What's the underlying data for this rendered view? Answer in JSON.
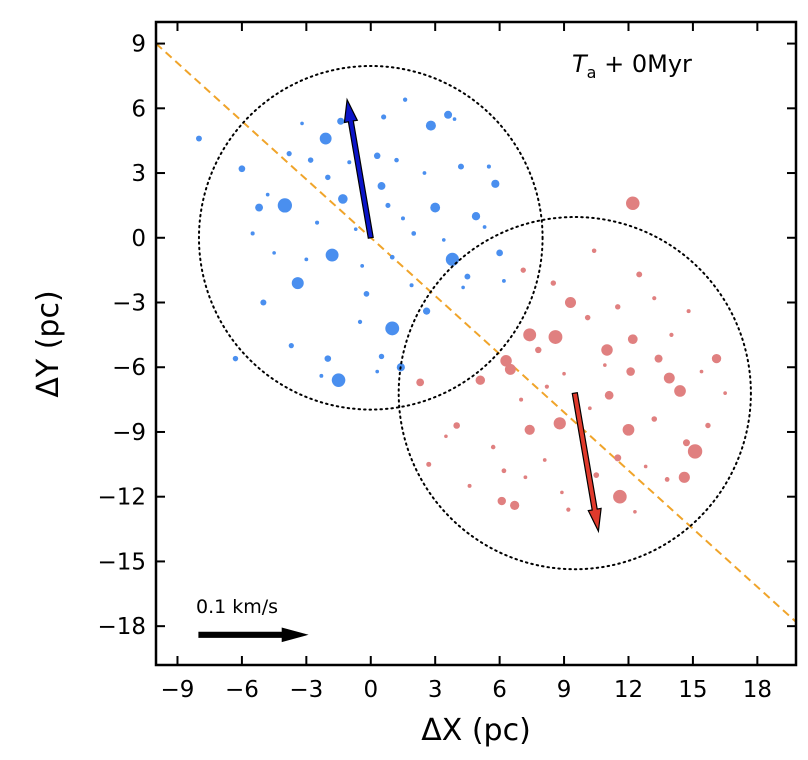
{
  "chart_data": {
    "type": "scatter",
    "title": "",
    "xlabel": "ΔX (pc)",
    "ylabel": "ΔY (pc)",
    "xlim": [
      -10.0,
      19.8
    ],
    "ylim": [
      -19.8,
      10.0
    ],
    "xticks": [
      -9,
      -6,
      -3,
      0,
      3,
      6,
      9,
      12,
      15,
      18
    ],
    "yticks": [
      9,
      6,
      3,
      0,
      -3,
      -6,
      -9,
      -12,
      -15,
      -18
    ],
    "tick_labels_x": [
      "−9",
      "−6",
      "−3",
      "0",
      "3",
      "6",
      "9",
      "12",
      "15",
      "18"
    ],
    "tick_labels_y": [
      "9",
      "6",
      "3",
      "0",
      "−3",
      "−6",
      "−9",
      "−12",
      "−15",
      "−18"
    ],
    "grid": false,
    "annotation": {
      "italic": "T",
      "subscript": "a",
      "rest": " + 0Myr"
    },
    "scale_bar_label": "0.1 km/s",
    "colors": {
      "blue_points": "#4a8fef",
      "red_points": "#e08080",
      "blue_arrow": "#0b14c8",
      "red_arrow": "#e03a2c",
      "dashed_line": "#f0a42a",
      "circle": "#000000"
    },
    "series": [
      {
        "cluster": "blue",
        "color": "#4a8fef",
        "center": [
          0,
          0
        ],
        "circle_radius": 8.0,
        "velocity_arrow": {
          "from": [
            0,
            0
          ],
          "to": [
            -1.1,
            6.4
          ]
        },
        "points": [
          [
            -8.0,
            4.6
          ],
          [
            -6.0,
            3.2
          ],
          [
            -4.8,
            2.0
          ],
          [
            -5.5,
            0.2
          ],
          [
            -6.3,
            -5.6
          ],
          [
            -5.0,
            -3.0
          ],
          [
            -3.2,
            5.3
          ],
          [
            -2.1,
            4.6
          ],
          [
            -1.4,
            5.4
          ],
          [
            0.6,
            5.6
          ],
          [
            1.6,
            6.4
          ],
          [
            2.8,
            5.2
          ],
          [
            3.6,
            5.7
          ],
          [
            3.9,
            5.5
          ],
          [
            4.2,
            3.3
          ],
          [
            5.5,
            3.3
          ],
          [
            5.8,
            2.5
          ],
          [
            5.3,
            0.5
          ],
          [
            6.0,
            -0.7
          ],
          [
            4.5,
            -1.8
          ],
          [
            6.2,
            -2.0
          ],
          [
            4.3,
            -2.3
          ],
          [
            3.8,
            -1.0
          ],
          [
            1.0,
            -4.2
          ],
          [
            0.3,
            -6.2
          ],
          [
            0.5,
            -5.5
          ],
          [
            -1.5,
            -6.6
          ],
          [
            -2.3,
            -6.4
          ],
          [
            -3.7,
            -5.0
          ],
          [
            -2.0,
            -5.6
          ],
          [
            1.4,
            -6.0
          ],
          [
            -0.5,
            -3.9
          ],
          [
            -3.0,
            -1.0
          ],
          [
            -4.0,
            1.5
          ],
          [
            -2.0,
            2.8
          ],
          [
            -1.0,
            3.5
          ],
          [
            0.3,
            3.8
          ],
          [
            1.2,
            3.6
          ],
          [
            2.5,
            3.0
          ],
          [
            3.0,
            1.4
          ],
          [
            2.0,
            0.2
          ],
          [
            1.0,
            -0.9
          ],
          [
            -0.7,
            0.4
          ],
          [
            -1.8,
            -0.8
          ],
          [
            -2.5,
            0.7
          ],
          [
            -3.4,
            -2.1
          ],
          [
            -0.2,
            -2.6
          ],
          [
            1.9,
            -2.2
          ],
          [
            2.6,
            -3.4
          ],
          [
            0.8,
            1.5
          ],
          [
            -1.3,
            1.8
          ],
          [
            0.5,
            2.4
          ],
          [
            -0.4,
            -1.3
          ],
          [
            1.5,
            0.9
          ],
          [
            -2.8,
            3.6
          ],
          [
            3.4,
            -0.1
          ],
          [
            -4.5,
            -0.7
          ],
          [
            -3.8,
            3.9
          ],
          [
            4.9,
            1.0
          ],
          [
            -5.2,
            1.4
          ]
        ]
      },
      {
        "cluster": "red",
        "color": "#e08080",
        "center": [
          9.5,
          -7.2
        ],
        "circle_radius": 8.2,
        "velocity_arrow": {
          "from": [
            9.5,
            -7.2
          ],
          "to": [
            10.6,
            -13.6
          ]
        },
        "points": [
          [
            12.2,
            1.6
          ],
          [
            10.4,
            -0.6
          ],
          [
            7.1,
            -1.5
          ],
          [
            12.5,
            -1.7
          ],
          [
            8.5,
            -2.1
          ],
          [
            9.3,
            -3.0
          ],
          [
            10.1,
            -3.7
          ],
          [
            11.5,
            -3.2
          ],
          [
            13.2,
            -2.8
          ],
          [
            14.8,
            -3.4
          ],
          [
            16.1,
            -5.6
          ],
          [
            15.4,
            -6.2
          ],
          [
            14.0,
            -4.5
          ],
          [
            12.2,
            -4.7
          ],
          [
            11.0,
            -5.2
          ],
          [
            8.6,
            -4.6
          ],
          [
            7.4,
            -4.5
          ],
          [
            6.3,
            -5.7
          ],
          [
            5.1,
            -6.6
          ],
          [
            2.3,
            -6.7
          ],
          [
            4.0,
            -8.7
          ],
          [
            3.5,
            -9.2
          ],
          [
            5.7,
            -9.7
          ],
          [
            6.2,
            -10.8
          ],
          [
            4.6,
            -11.5
          ],
          [
            2.7,
            -10.5
          ],
          [
            6.1,
            -12.2
          ],
          [
            6.7,
            -12.4
          ],
          [
            9.2,
            -12.6
          ],
          [
            11.6,
            -12.0
          ],
          [
            12.3,
            -12.7
          ],
          [
            13.8,
            -11.2
          ],
          [
            14.7,
            -9.5
          ],
          [
            15.7,
            -8.7
          ],
          [
            16.5,
            -7.2
          ],
          [
            15.1,
            -9.9
          ],
          [
            13.2,
            -8.4
          ],
          [
            12.0,
            -8.9
          ],
          [
            11.5,
            -10.2
          ],
          [
            10.5,
            -11.0
          ],
          [
            8.1,
            -10.3
          ],
          [
            7.4,
            -8.9
          ],
          [
            8.8,
            -8.6
          ],
          [
            8.2,
            -6.9
          ],
          [
            9.0,
            -6.3
          ],
          [
            10.2,
            -7.9
          ],
          [
            11.1,
            -7.3
          ],
          [
            12.1,
            -6.2
          ],
          [
            13.4,
            -5.6
          ],
          [
            14.4,
            -7.1
          ],
          [
            7.0,
            -7.5
          ],
          [
            6.5,
            -6.1
          ],
          [
            9.9,
            -9.2
          ],
          [
            8.9,
            -11.8
          ],
          [
            12.8,
            -10.6
          ],
          [
            10.9,
            -5.9
          ],
          [
            7.8,
            -5.2
          ],
          [
            13.9,
            -6.5
          ],
          [
            14.6,
            -11.1
          ],
          [
            7.2,
            -11.1
          ]
        ]
      }
    ],
    "reference_line": {
      "style": "dashed",
      "from": [
        -10.0,
        9.0
      ],
      "to": [
        19.8,
        -17.8
      ]
    },
    "scale_arrow_length_pc": 5.0,
    "scale_arrow_start": [
      -8.0,
      -18.4
    ]
  }
}
